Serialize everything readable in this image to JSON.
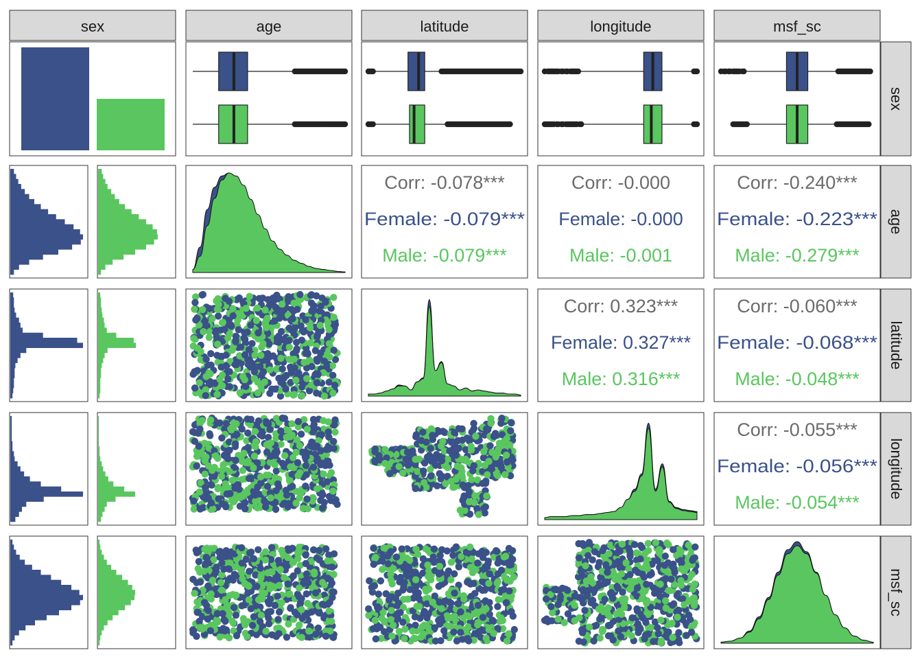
{
  "colors": {
    "female": "#3a5189",
    "male": "#5ac65f",
    "overall": "#6b6b6b",
    "strip": "#d9d9d9",
    "border": "#333333"
  },
  "chart_data": {
    "type": "pairs",
    "variables": [
      "sex",
      "age",
      "latitude",
      "longitude",
      "msf_sc"
    ],
    "groups": [
      "Female",
      "Male"
    ],
    "sex_counts": {
      "Female": 100,
      "Male": 50
    },
    "correlations": [
      {
        "row": "age",
        "col": "latitude",
        "corr": "Corr: -0.078***",
        "female": "Female: -0.079***",
        "male": "Male: -0.079***"
      },
      {
        "row": "age",
        "col": "longitude",
        "corr": "Corr: -0.000",
        "female": "Female: -0.000",
        "male": "Male: -0.001"
      },
      {
        "row": "age",
        "col": "msf_sc",
        "corr": "Corr: -0.240***",
        "female": "Female: -0.223***",
        "male": "Male: -0.279***"
      },
      {
        "row": "latitude",
        "col": "longitude",
        "corr": "Corr: 0.323***",
        "female": "Female: 0.327***",
        "male": "Male: 0.316***"
      },
      {
        "row": "latitude",
        "col": "msf_sc",
        "corr": "Corr: -0.060***",
        "female": "Female: -0.068***",
        "male": "Male: -0.048***"
      },
      {
        "row": "longitude",
        "col": "msf_sc",
        "corr": "Corr: -0.055***",
        "female": "Female: -0.056***",
        "male": "Male: -0.054***"
      }
    ],
    "boxplots": {
      "age": {
        "Female": {
          "q1": 0.17,
          "median": 0.27,
          "q3": 0.36,
          "wlo": 0.0,
          "whi": 0.67,
          "out_hi": [
            0.67,
            1.0
          ]
        },
        "Male": {
          "q1": 0.17,
          "median": 0.27,
          "q3": 0.36,
          "wlo": 0.0,
          "whi": 0.67,
          "out_hi": [
            0.67,
            1.0
          ]
        }
      },
      "latitude": {
        "Female": {
          "q1": 0.26,
          "median": 0.33,
          "q3": 0.37,
          "wlo": 0.03,
          "whi": 0.48,
          "out_lo": [
            0.0,
            0.03
          ],
          "out_hi": [
            0.48,
            1.0
          ]
        },
        "Male": {
          "q1": 0.27,
          "median": 0.3,
          "q3": 0.37,
          "wlo": 0.03,
          "whi": 0.52,
          "out_lo": [
            0.0,
            0.03
          ],
          "out_hi": [
            0.52,
            0.93
          ]
        }
      },
      "longitude": {
        "Female": {
          "q1": 0.65,
          "median": 0.71,
          "q3": 0.77,
          "wlo": 0.23,
          "whi": 0.98,
          "out_lo": [
            0.0,
            0.22
          ],
          "out_hi": [
            0.98,
            1.0
          ]
        },
        "Male": {
          "q1": 0.65,
          "median": 0.7,
          "q3": 0.77,
          "wlo": 0.25,
          "whi": 0.98,
          "out_lo": [
            0.0,
            0.25
          ],
          "out_hi": [
            0.98,
            1.0
          ]
        }
      },
      "msf_sc": {
        "Female": {
          "q1": 0.43,
          "median": 0.5,
          "q3": 0.57,
          "wlo": 0.15,
          "whi": 0.77,
          "out_lo": [
            0.0,
            0.15
          ],
          "out_hi": [
            0.77,
            0.98
          ]
        },
        "Male": {
          "q1": 0.43,
          "median": 0.5,
          "q3": 0.57,
          "wlo": 0.17,
          "whi": 0.76,
          "out_lo": [
            0.08,
            0.17
          ],
          "out_hi": [
            0.76,
            0.97
          ]
        }
      }
    },
    "histograms": {
      "age": {
        "Female": [
          0.05,
          0.08,
          0.11,
          0.15,
          0.2,
          0.26,
          0.33,
          0.42,
          0.52,
          0.63,
          0.75,
          0.87,
          0.96,
          1.0,
          0.97,
          0.85,
          0.66,
          0.45,
          0.26,
          0.12,
          0.05
        ],
        "Male": [
          0.05,
          0.07,
          0.1,
          0.13,
          0.18,
          0.23,
          0.29,
          0.37,
          0.46,
          0.56,
          0.66,
          0.75,
          0.81,
          0.82,
          0.77,
          0.66,
          0.51,
          0.35,
          0.2,
          0.1,
          0.04
        ]
      },
      "latitude": {
        "Female": [
          0.04,
          0.05,
          0.05,
          0.06,
          0.08,
          0.12,
          0.14,
          0.17,
          0.45,
          0.92,
          1.0,
          0.22,
          0.14,
          0.1,
          0.07,
          0.06,
          0.06,
          0.05,
          0.05,
          0.04,
          0.03
        ],
        "Male": [
          0.03,
          0.04,
          0.04,
          0.05,
          0.06,
          0.08,
          0.09,
          0.12,
          0.25,
          0.49,
          0.52,
          0.13,
          0.09,
          0.07,
          0.05,
          0.04,
          0.04,
          0.03,
          0.03,
          0.03,
          0.02
        ]
      },
      "longitude": {
        "Female": [
          0.02,
          0.02,
          0.02,
          0.02,
          0.02,
          0.03,
          0.03,
          0.05,
          0.06,
          0.1,
          0.14,
          0.19,
          0.27,
          0.42,
          0.7,
          1.0,
          0.46,
          0.22,
          0.16,
          0.12,
          0.07
        ],
        "Male": [
          0.01,
          0.01,
          0.01,
          0.01,
          0.01,
          0.01,
          0.02,
          0.02,
          0.03,
          0.05,
          0.07,
          0.1,
          0.14,
          0.21,
          0.36,
          0.51,
          0.24,
          0.12,
          0.09,
          0.06,
          0.04
        ]
      },
      "msf_sc": {
        "Female": [
          0.03,
          0.05,
          0.08,
          0.13,
          0.2,
          0.3,
          0.42,
          0.56,
          0.7,
          0.84,
          0.95,
          1.0,
          0.96,
          0.84,
          0.67,
          0.5,
          0.34,
          0.21,
          0.12,
          0.06,
          0.03
        ],
        "Male": [
          0.02,
          0.03,
          0.05,
          0.08,
          0.12,
          0.18,
          0.25,
          0.33,
          0.41,
          0.47,
          0.51,
          0.5,
          0.45,
          0.37,
          0.28,
          0.2,
          0.13,
          0.08,
          0.05,
          0.03,
          0.02
        ]
      }
    },
    "densities": {
      "age": {
        "Female": [
          0.03,
          0.25,
          0.62,
          0.84,
          0.95,
          0.98,
          0.94,
          0.84,
          0.7,
          0.55,
          0.41,
          0.3,
          0.22,
          0.16,
          0.12,
          0.09,
          0.06,
          0.04,
          0.03,
          0.02,
          0.01,
          0.005
        ],
        "Male": [
          0.03,
          0.16,
          0.46,
          0.73,
          0.91,
          0.98,
          0.95,
          0.86,
          0.72,
          0.57,
          0.43,
          0.31,
          0.23,
          0.17,
          0.12,
          0.09,
          0.06,
          0.04,
          0.03,
          0.02,
          0.01,
          0.005
        ]
      },
      "latitude": {
        "Female": [
          0.02,
          0.02,
          0.03,
          0.05,
          0.07,
          0.11,
          0.1,
          0.06,
          0.14,
          0.18,
          0.95,
          0.25,
          0.34,
          0.12,
          0.1,
          0.06,
          0.08,
          0.05,
          0.06,
          0.05,
          0.04,
          0.03,
          0.03,
          0.02,
          0.02,
          0.01
        ],
        "Male": [
          0.02,
          0.02,
          0.03,
          0.05,
          0.07,
          0.1,
          0.1,
          0.06,
          0.14,
          0.17,
          0.88,
          0.25,
          0.33,
          0.12,
          0.1,
          0.06,
          0.08,
          0.05,
          0.06,
          0.05,
          0.04,
          0.03,
          0.03,
          0.02,
          0.02,
          0.01
        ]
      },
      "longitude": {
        "Female": [
          0.02,
          0.03,
          0.03,
          0.03,
          0.04,
          0.04,
          0.05,
          0.05,
          0.06,
          0.07,
          0.08,
          0.12,
          0.2,
          0.3,
          0.45,
          0.95,
          0.3,
          0.55,
          0.18,
          0.12,
          0.1,
          0.09,
          0.08
        ],
        "Male": [
          0.02,
          0.03,
          0.03,
          0.03,
          0.04,
          0.04,
          0.05,
          0.05,
          0.06,
          0.07,
          0.08,
          0.12,
          0.2,
          0.28,
          0.43,
          0.9,
          0.28,
          0.52,
          0.17,
          0.11,
          0.09,
          0.08,
          0.07
        ]
      },
      "msf_sc": {
        "Female": [
          0.01,
          0.02,
          0.05,
          0.12,
          0.26,
          0.45,
          0.7,
          0.92,
          1.0,
          0.9,
          0.7,
          0.47,
          0.28,
          0.15,
          0.07,
          0.03,
          0.01
        ],
        "Male": [
          0.01,
          0.02,
          0.05,
          0.11,
          0.24,
          0.43,
          0.67,
          0.88,
          0.96,
          0.88,
          0.69,
          0.47,
          0.28,
          0.15,
          0.07,
          0.03,
          0.01
        ]
      }
    }
  }
}
